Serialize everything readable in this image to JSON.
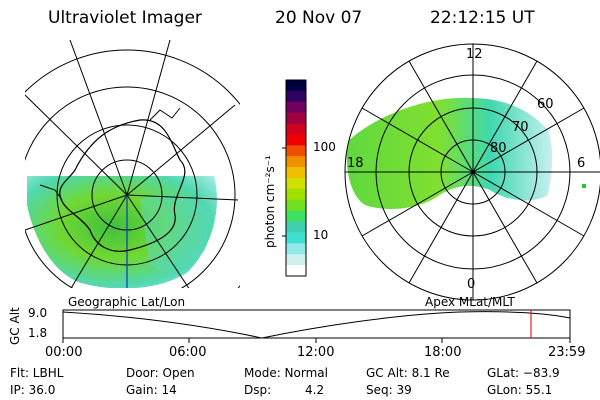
{
  "header": {
    "instrument": "Ultraviolet Imager",
    "date": "20 Nov 07",
    "time": "22:12:15 UT"
  },
  "colorbar": {
    "label": "photon cm⁻²s⁻¹",
    "ticks": [
      "100",
      "10"
    ],
    "colors": [
      "#000040",
      "#300060",
      "#700060",
      "#a00040",
      "#d00020",
      "#f00000",
      "#f05000",
      "#f09000",
      "#f0c000",
      "#d0e000",
      "#a0e000",
      "#70e020",
      "#40e060",
      "#40d0b0",
      "#40e0d0",
      "#90e8e8",
      "#d0f0f0",
      "#ffffff"
    ]
  },
  "polar_plot": {
    "mlt_labels": [
      "12",
      "18",
      "6",
      "0"
    ],
    "lat_labels": [
      "60",
      "70",
      "80"
    ]
  },
  "left_map_label": "Geographic Lat/Lon",
  "right_map_label": "Apex MLat/MLT",
  "altitude_plot": {
    "ylabel": "GC Alt",
    "yticks": [
      "9.0",
      "1.8"
    ],
    "xticks": [
      "00:00",
      "06:00",
      "12:00",
      "18:00",
      "23:59"
    ],
    "marker_color": "#dd2222"
  },
  "info": {
    "row1": [
      {
        "k": "Flt: LBHL"
      },
      {
        "k": "Door: Open"
      },
      {
        "k": "Mode: Normal"
      },
      {
        "k": "GC Alt: 8.1 Re"
      },
      {
        "k": "GLat: −83.9"
      }
    ],
    "row2": [
      {
        "k": "IP: 36.0"
      },
      {
        "k": "Gain: 14"
      },
      {
        "k": "Dsp:",
        "v": "4.2"
      },
      {
        "k": "Seq: 39"
      },
      {
        "k": "GLon:  55.1"
      }
    ]
  }
}
